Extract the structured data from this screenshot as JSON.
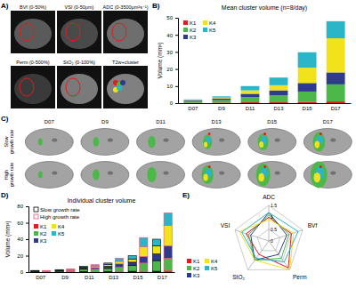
{
  "images": {
    "panel": "A)",
    "tiles": [
      "BVf (0-50%)",
      "VSI (0-50μm)",
      "ADC (0-3500μm²s⁻¹)",
      "Perm (0-500%)",
      "StO₂ (0-100%)",
      "T2w+cluster"
    ]
  },
  "slices": {
    "panel": "C)",
    "columns": [
      "D07",
      "D9",
      "D11",
      "D13",
      "D15",
      "D17"
    ],
    "rows": [
      "Slow growth rate",
      "High growth rate"
    ]
  },
  "chart_data": [
    {
      "panel": "B)",
      "type": "bar",
      "stacked": true,
      "title": "Mean cluster volume (n=8/day)",
      "ylabel": "Volume (mm³)",
      "categories": [
        "D07",
        "D9",
        "D11",
        "D13",
        "D15",
        "D17"
      ],
      "ylim": [
        0,
        50
      ],
      "yticks": [
        0,
        10,
        20,
        30,
        40,
        50
      ],
      "legend": "top-left",
      "series": [
        {
          "name": "K1",
          "color": "#e41a1c",
          "values": [
            0.2,
            0.3,
            0.5,
            0.5,
            0.8,
            1
          ]
        },
        {
          "name": "K2",
          "color": "#4db84a",
          "values": [
            1,
            1.5,
            3,
            4,
            6,
            10
          ]
        },
        {
          "name": "K3",
          "color": "#2e3a8c",
          "values": [
            0.5,
            1,
            2,
            3,
            5,
            7
          ]
        },
        {
          "name": "K4",
          "color": "#f2e21b",
          "values": [
            0.2,
            0.5,
            2,
            3,
            9,
            20
          ]
        },
        {
          "name": "K5",
          "color": "#2bb5c8",
          "values": [
            0.3,
            0.7,
            2.5,
            4.5,
            9,
            10
          ]
        }
      ]
    },
    {
      "panel": "D)",
      "type": "bar",
      "stacked": true,
      "title": "Individual cluster volume",
      "ylabel": "Volume (mm³)",
      "categories": [
        "D07",
        "D9",
        "D11",
        "D13",
        "D15",
        "D17"
      ],
      "ylim": [
        0,
        80
      ],
      "yticks": [
        0,
        20,
        40,
        60,
        80
      ],
      "legend": "top-left",
      "groups": [
        {
          "name": "Slow growth rate",
          "color": "#000000"
        },
        {
          "name": "High growth rate",
          "color": "#e8547a"
        }
      ],
      "series": [
        {
          "name": "K1",
          "color": "#e41a1c",
          "values": [
            [
              0.2,
              0.2
            ],
            [
              0.2,
              0.3
            ],
            [
              0.5,
              0.5
            ],
            [
              0.5,
              1
            ],
            [
              1,
              1
            ],
            [
              1,
              2
            ]
          ]
        },
        {
          "name": "K2",
          "color": "#4db84a",
          "values": [
            [
              1,
              1
            ],
            [
              1.3,
              1.5
            ],
            [
              3,
              3
            ],
            [
              4,
              5
            ],
            [
              7,
              10
            ],
            [
              13,
              15
            ]
          ]
        },
        {
          "name": "K3",
          "color": "#2e3a8c",
          "values": [
            [
              0.4,
              0.4
            ],
            [
              0.6,
              0.8
            ],
            [
              1.5,
              2
            ],
            [
              2.5,
              4
            ],
            [
              4,
              8
            ],
            [
              8,
              15
            ]
          ]
        },
        {
          "name": "K4",
          "color": "#f2e21b",
          "values": [
            [
              0.2,
              0.2
            ],
            [
              0.4,
              0.6
            ],
            [
              1,
              1.5
            ],
            [
              2,
              3
            ],
            [
              4,
              12
            ],
            [
              10,
              25
            ]
          ]
        },
        {
          "name": "K5",
          "color": "#2bb5c8",
          "values": [
            [
              0.2,
              0.2
            ],
            [
              0.5,
              0.8
            ],
            [
              1,
              2
            ],
            [
              2,
              4
            ],
            [
              4,
              11
            ],
            [
              8,
              15
            ]
          ]
        }
      ]
    },
    {
      "panel": "E)",
      "type": "radar",
      "categories": [
        "ADC",
        "BVf",
        "Perm",
        "StO₂",
        "VSI"
      ],
      "rlim": [
        0,
        1.5
      ],
      "rticks": [
        0,
        0.5,
        1,
        1.5
      ],
      "legend": "bottom-left",
      "series": [
        {
          "name": "K1",
          "color": "#e41a1c",
          "values": [
            1.0,
            1.0,
            1.4,
            0.7,
            1.0
          ]
        },
        {
          "name": "K2",
          "color": "#4db84a",
          "values": [
            1.1,
            0.9,
            0.9,
            1.0,
            0.9
          ]
        },
        {
          "name": "K3",
          "color": "#2e3a8c",
          "values": [
            1.2,
            0.8,
            0.7,
            1.0,
            0.8
          ]
        },
        {
          "name": "K4",
          "color": "#f2e21b",
          "values": [
            0.9,
            1.1,
            1.5,
            1.0,
            1.3
          ]
        },
        {
          "name": "K5",
          "color": "#2bb5c8",
          "values": [
            1.2,
            1.3,
            1.1,
            0.9,
            1.2
          ]
        }
      ]
    }
  ]
}
